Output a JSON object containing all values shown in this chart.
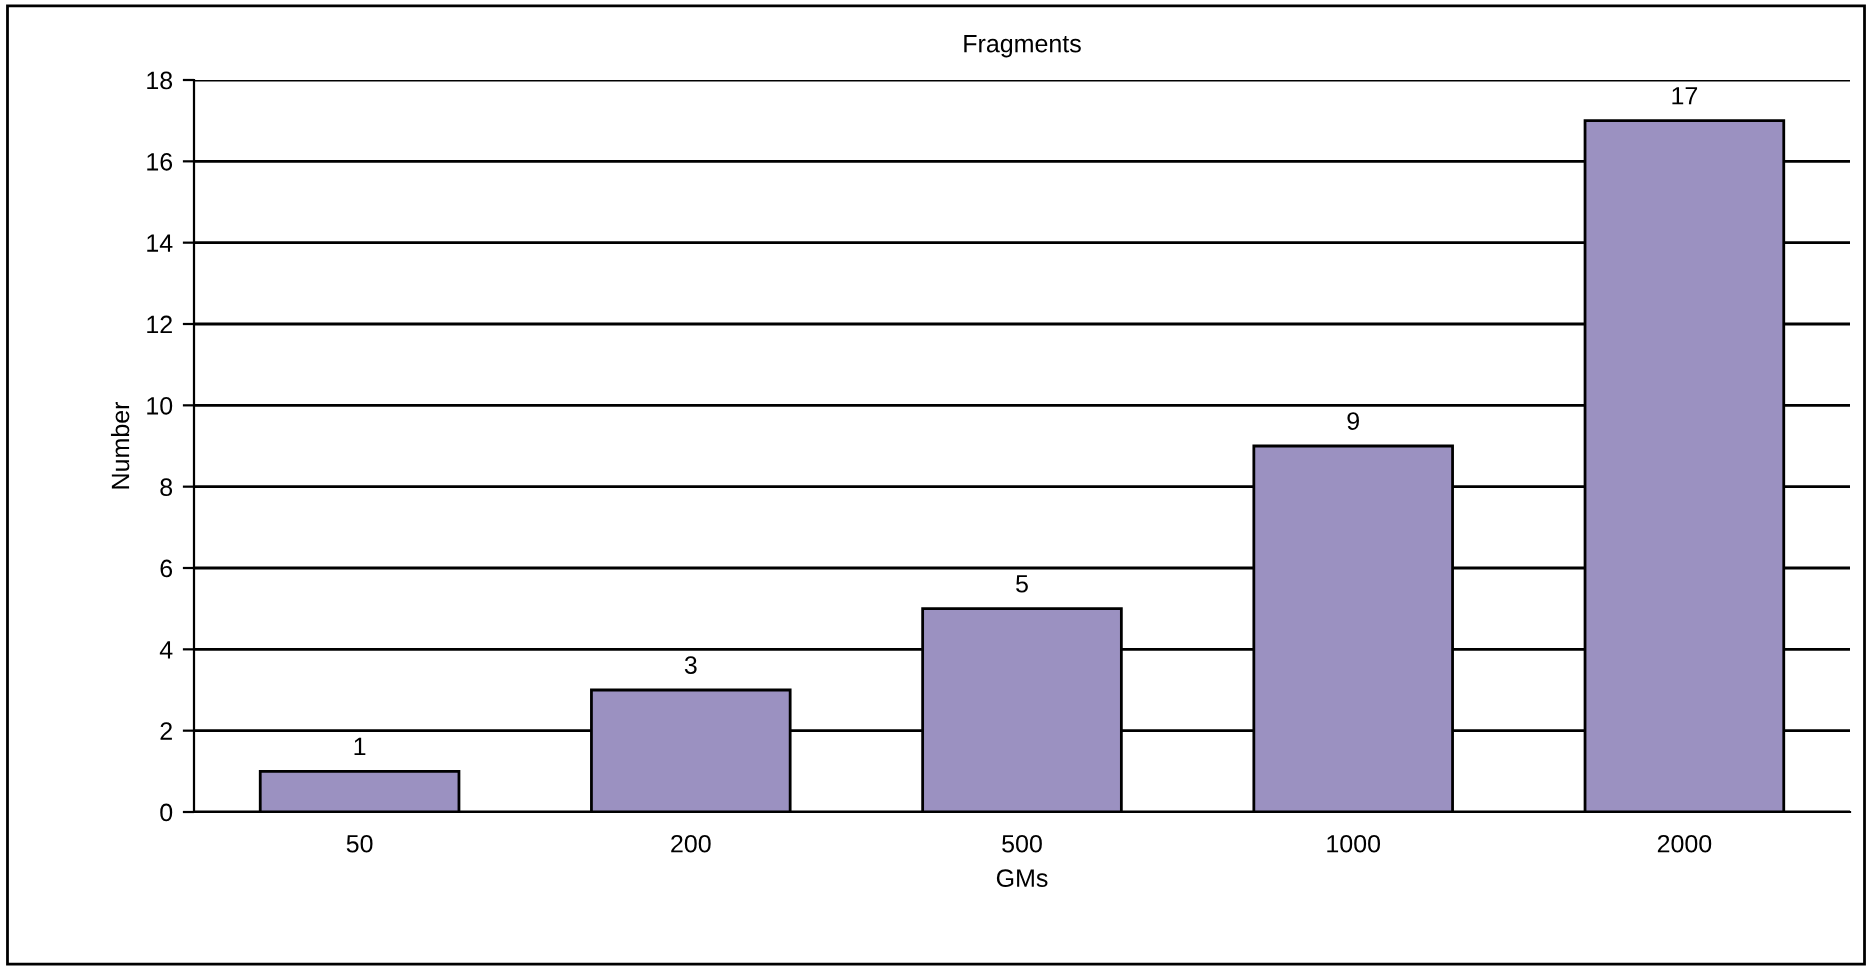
{
  "chart_data": {
    "type": "bar",
    "title": "Fragments",
    "xlabel": "GMs",
    "ylabel": "Number",
    "categories": [
      "50",
      "200",
      "500",
      "1000",
      "2000"
    ],
    "values": [
      1,
      3,
      5,
      9,
      17
    ],
    "color": "#9b91c1",
    "ylim": [
      0,
      18
    ],
    "yticks": [
      0,
      2,
      4,
      6,
      8,
      10,
      12,
      14,
      16,
      18
    ],
    "grid": "y",
    "data_labels": true,
    "legend": false
  }
}
